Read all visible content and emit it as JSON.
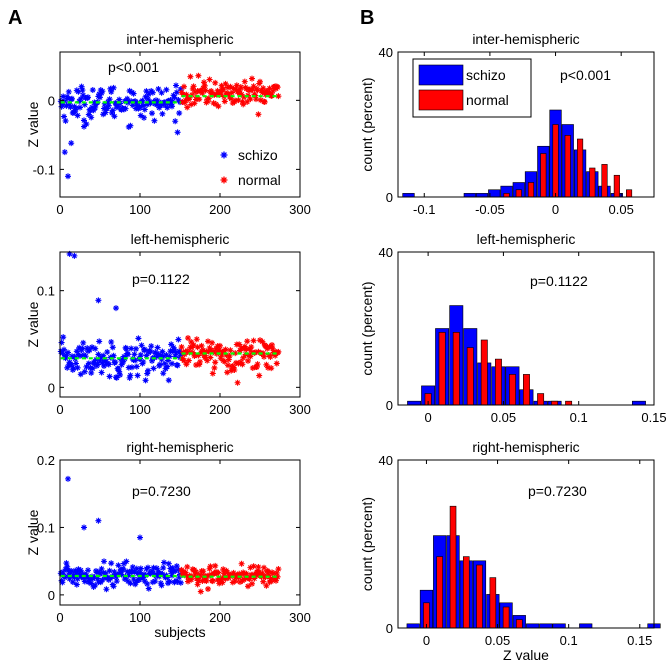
{
  "figure": {
    "panel_labels": [
      "A",
      "B"
    ]
  },
  "chart_data": [
    {
      "id": "A1",
      "type": "scatter",
      "panel": "A",
      "title": "inter-hemispheric",
      "ylabel": "Z value",
      "xlabel": "",
      "annotation": "p<0.001",
      "xlim": [
        0,
        300
      ],
      "ylim": [
        -0.14,
        0.07
      ],
      "xticks": [
        0,
        100,
        200,
        300
      ],
      "yticks": [
        -0.1,
        0
      ],
      "yticklabels": [
        "-0.1",
        "0"
      ],
      "legend": {
        "placement": "bottom-right",
        "entries": [
          {
            "name": "schizo",
            "color": "#0000ff"
          },
          {
            "name": "normal",
            "color": "#ff0000"
          }
        ]
      },
      "series": [
        {
          "name": "schizo",
          "color": "#0000ff",
          "x_range": [
            1,
            151
          ],
          "mean": -0.004,
          "sd": 0.022,
          "count": 151,
          "outliers": [
            [
              6,
              -0.075
            ],
            [
              10,
              -0.11
            ],
            [
              14,
              -0.062
            ],
            [
              30,
              -0.038
            ]
          ]
        },
        {
          "name": "normal",
          "color": "#ff0000",
          "x_range": [
            152,
            273
          ],
          "mean": 0.01,
          "sd": 0.018,
          "count": 122,
          "outliers": []
        }
      ],
      "mean_lines": [
        {
          "x": [
            1,
            151
          ],
          "y": -0.003
        },
        {
          "x": [
            152,
            273
          ],
          "y": 0.006
        }
      ],
      "mean_color": "#00ff00"
    },
    {
      "id": "A2",
      "type": "scatter",
      "panel": "A",
      "title": "left-hemispheric",
      "ylabel": "Z value",
      "xlabel": "",
      "annotation": "p=0.1122",
      "xlim": [
        0,
        300
      ],
      "ylim": [
        -0.01,
        0.14
      ],
      "xticks": [
        0,
        100,
        200,
        300
      ],
      "yticks": [
        0,
        0.1
      ],
      "yticklabels": [
        "0",
        "0.1"
      ],
      "series": [
        {
          "name": "schizo",
          "color": "#0000ff",
          "x_range": [
            1,
            151
          ],
          "mean": 0.03,
          "sd": 0.017,
          "count": 151,
          "outliers": [
            [
              12,
              0.138
            ],
            [
              18,
              0.136
            ],
            [
              48,
              0.09
            ],
            [
              70,
              0.082
            ]
          ]
        },
        {
          "name": "normal",
          "color": "#ff0000",
          "x_range": [
            152,
            273
          ],
          "mean": 0.034,
          "sd": 0.015,
          "count": 122,
          "outliers": []
        }
      ],
      "mean_lines": [
        {
          "x": [
            1,
            151
          ],
          "y": 0.03
        },
        {
          "x": [
            152,
            273
          ],
          "y": 0.035
        }
      ],
      "mean_color": "#00ff00"
    },
    {
      "id": "A3",
      "type": "scatter",
      "panel": "A",
      "title": "right-hemispheric",
      "ylabel": "Z value",
      "xlabel": "subjects",
      "annotation": "p=0.7230",
      "xlim": [
        0,
        300
      ],
      "ylim": [
        -0.015,
        0.2
      ],
      "xticks": [
        0,
        100,
        200,
        300
      ],
      "yticks": [
        0,
        0.1,
        0.2
      ],
      "yticklabels": [
        "0",
        "0.1",
        "0.2"
      ],
      "series": [
        {
          "name": "schizo",
          "color": "#0000ff",
          "x_range": [
            1,
            151
          ],
          "mean": 0.03,
          "sd": 0.016,
          "count": 151,
          "outliers": [
            [
              10,
              0.172
            ],
            [
              30,
              0.1
            ],
            [
              48,
              0.11
            ],
            [
              100,
              0.085
            ]
          ]
        },
        {
          "name": "normal",
          "color": "#ff0000",
          "x_range": [
            152,
            273
          ],
          "mean": 0.028,
          "sd": 0.013,
          "count": 122,
          "outliers": []
        }
      ],
      "mean_lines": [
        {
          "x": [
            1,
            151
          ],
          "y": 0.028
        },
        {
          "x": [
            152,
            273
          ],
          "y": 0.027
        }
      ],
      "mean_color": "#00ff00"
    },
    {
      "id": "B1",
      "type": "bar",
      "panel": "B",
      "title": "inter-hemispheric",
      "ylabel": "count (percent)",
      "xlabel": "",
      "annotation": "p<0.001",
      "xlim": [
        -0.12,
        0.075
      ],
      "ylim": [
        0,
        40
      ],
      "xticks": [
        -0.1,
        -0.05,
        0,
        0.05
      ],
      "xticklabels": [
        "-0.1",
        "-0.05",
        "0",
        "0.05"
      ],
      "yticks": [
        0,
        40
      ],
      "yticklabels": [
        "0",
        "40"
      ],
      "legend": {
        "placement": "top-left",
        "entries": [
          {
            "name": "schizo",
            "color": "#0000ff"
          },
          {
            "name": "normal",
            "color": "#ff0000"
          }
        ]
      },
      "bin_width": 0.0093,
      "bin_centers": [
        -0.112,
        -0.0933,
        -0.084,
        -0.0747,
        -0.0653,
        -0.056,
        -0.0467,
        -0.0373,
        -0.028,
        -0.0187,
        -0.0093,
        0,
        0.0093,
        0.0187,
        0.028,
        0.0373,
        0.0467,
        0.056
      ],
      "series": [
        {
          "name": "schizo",
          "color": "#0000ff",
          "values": [
            1,
            0,
            0,
            0,
            1,
            1,
            2,
            3,
            4,
            7,
            14,
            24,
            20,
            13,
            7,
            3,
            1,
            0
          ]
        },
        {
          "name": "normal",
          "color": "#ff0000",
          "values": [
            0,
            0,
            0,
            0,
            0,
            0,
            0,
            1,
            2,
            4,
            12,
            20,
            17,
            16,
            8,
            9,
            6,
            2
          ]
        }
      ]
    },
    {
      "id": "B2",
      "type": "bar",
      "panel": "B",
      "title": "left-hemispheric",
      "ylabel": "count (percent)",
      "xlabel": "",
      "annotation": "p=0.1122",
      "xlim": [
        -0.02,
        0.15
      ],
      "ylim": [
        0,
        40
      ],
      "xticks": [
        0,
        0.05,
        0.1,
        0.15
      ],
      "xticklabels": [
        "0",
        "0.05",
        "0.1",
        "0.15"
      ],
      "yticks": [
        0,
        40
      ],
      "yticklabels": [
        "0",
        "40"
      ],
      "bin_width": 0.0093,
      "bin_centers": [
        -0.0093,
        0,
        0.0093,
        0.0187,
        0.028,
        0.0373,
        0.0467,
        0.056,
        0.0653,
        0.0747,
        0.084,
        0.0933,
        0.1027,
        0.112,
        0.1213,
        0.1307,
        0.14
      ],
      "series": [
        {
          "name": "schizo",
          "color": "#0000ff",
          "values": [
            1,
            5,
            20,
            26,
            20,
            11,
            10,
            10,
            4,
            1,
            1,
            0,
            0,
            0,
            0,
            0,
            1
          ]
        },
        {
          "name": "normal",
          "color": "#ff0000",
          "values": [
            0,
            3,
            19,
            19,
            15,
            17,
            12,
            8,
            8,
            3,
            1,
            1,
            0,
            0,
            0,
            0,
            0
          ]
        }
      ]
    },
    {
      "id": "B3",
      "type": "bar",
      "panel": "B",
      "title": "right-hemispheric",
      "ylabel": "count (percent)",
      "xlabel": "Z value",
      "annotation": "p=0.7230",
      "xlim": [
        -0.02,
        0.16
      ],
      "ylim": [
        0,
        40
      ],
      "xticks": [
        0,
        0.05,
        0.1,
        0.15
      ],
      "xticklabels": [
        "0",
        "0.05",
        "0.1",
        "0.15"
      ],
      "yticks": [
        0,
        40
      ],
      "yticklabels": [
        "0",
        "40"
      ],
      "bin_width": 0.0093,
      "bin_centers": [
        -0.0093,
        0,
        0.0093,
        0.0187,
        0.028,
        0.0373,
        0.0467,
        0.056,
        0.0653,
        0.0747,
        0.084,
        0.0933,
        0.1027,
        0.112,
        0.1213,
        0.1307,
        0.14,
        0.15,
        0.16
      ],
      "series": [
        {
          "name": "schizo",
          "color": "#0000ff",
          "values": [
            1,
            9,
            22,
            22,
            16,
            16,
            8,
            6,
            3,
            1,
            1,
            1,
            0,
            1,
            0,
            0,
            0,
            0,
            1
          ]
        },
        {
          "name": "normal",
          "color": "#ff0000",
          "values": [
            0,
            6,
            17,
            29,
            17,
            15,
            12,
            5,
            2,
            0,
            0,
            0,
            0,
            0,
            0,
            0,
            0,
            0,
            0
          ]
        }
      ]
    }
  ]
}
